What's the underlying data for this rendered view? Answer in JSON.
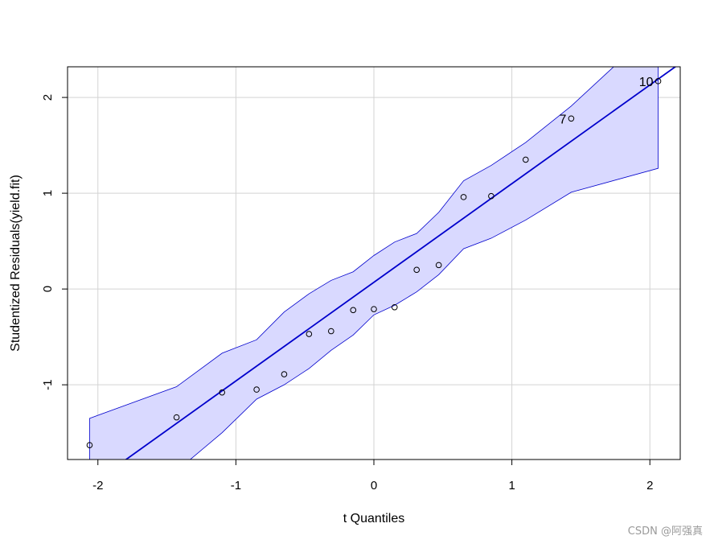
{
  "chart_data": {
    "type": "scatter",
    "title": "",
    "xlabel": "t Quantiles",
    "ylabel": "Studentized Residuals(yield.fit)",
    "xlim": [
      -2.22,
      2.22
    ],
    "ylim": [
      -1.78,
      2.32
    ],
    "x_ticks": [
      -2,
      -1,
      0,
      1,
      2
    ],
    "x_tick_labels": [
      "-2",
      "-1",
      "0",
      "1",
      "2"
    ],
    "y_ticks": [
      -1,
      0,
      1,
      2
    ],
    "y_tick_labels": [
      "-1",
      "0",
      "1",
      "2"
    ],
    "grid": true,
    "points": [
      {
        "x": -2.06,
        "y": -1.63
      },
      {
        "x": -1.43,
        "y": -1.34
      },
      {
        "x": -1.1,
        "y": -1.08
      },
      {
        "x": -0.85,
        "y": -1.05
      },
      {
        "x": -0.65,
        "y": -0.89
      },
      {
        "x": -0.47,
        "y": -0.47
      },
      {
        "x": -0.31,
        "y": -0.44
      },
      {
        "x": -0.15,
        "y": -0.22
      },
      {
        "x": 0.0,
        "y": -0.21
      },
      {
        "x": 0.15,
        "y": -0.19
      },
      {
        "x": 0.31,
        "y": 0.2
      },
      {
        "x": 0.47,
        "y": 0.25
      },
      {
        "x": 0.65,
        "y": 0.96
      },
      {
        "x": 0.85,
        "y": 0.97
      },
      {
        "x": 1.1,
        "y": 1.35
      },
      {
        "x": 1.43,
        "y": 1.78,
        "label": "7"
      },
      {
        "x": 2.06,
        "y": 2.17,
        "label": "10"
      }
    ],
    "reference_line": {
      "intercept": 0.07,
      "slope": 1.03
    },
    "envelope": {
      "x": [
        -2.06,
        -1.43,
        -1.1,
        -0.85,
        -0.65,
        -0.47,
        -0.31,
        -0.15,
        0.0,
        0.15,
        0.31,
        0.47,
        0.65,
        0.85,
        1.1,
        1.43,
        2.06
      ],
      "upper": [
        -1.35,
        -1.02,
        -0.67,
        -0.53,
        -0.24,
        -0.05,
        0.09,
        0.18,
        0.35,
        0.49,
        0.58,
        0.8,
        1.13,
        1.29,
        1.53,
        1.91,
        2.75
      ],
      "lower": [
        -1.9,
        -1.9,
        -1.5,
        -1.15,
        -1.0,
        -0.83,
        -0.64,
        -0.48,
        -0.27,
        -0.17,
        -0.03,
        0.15,
        0.42,
        0.53,
        0.72,
        1.01,
        1.26
      ]
    },
    "colors": {
      "band_fill": "#d9d9ff",
      "band_edge": "#0000cc",
      "line": "#0000cc",
      "points": "#000000",
      "grid": "#d3d3d3"
    }
  },
  "watermark": "CSDN @阿强真"
}
